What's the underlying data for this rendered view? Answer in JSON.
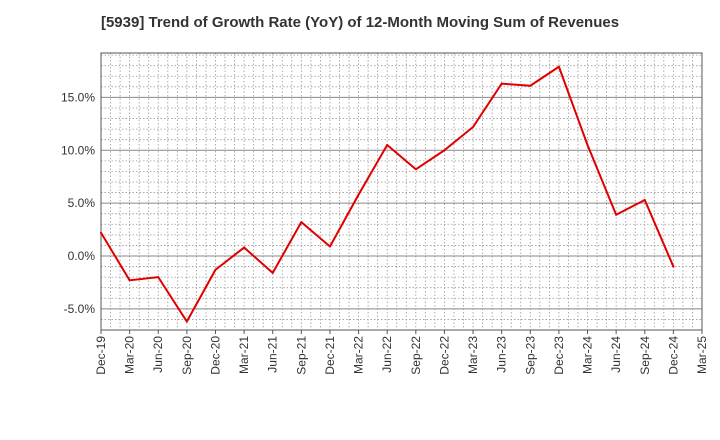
{
  "chart_data": {
    "type": "line",
    "title": "[5939]  Trend of Growth Rate (YoY) of 12-Month Moving Sum of Revenues",
    "xlabel": "",
    "ylabel": "",
    "x_tick_labels": [
      "Dec-19",
      "Mar-20",
      "Jun-20",
      "Sep-20",
      "Dec-20",
      "Mar-21",
      "Jun-21",
      "Sep-21",
      "Dec-21",
      "Mar-22",
      "Jun-22",
      "Sep-22",
      "Dec-22",
      "Mar-23",
      "Jun-23",
      "Sep-23",
      "Dec-23",
      "Mar-24",
      "Jun-24",
      "Sep-24",
      "Dec-24",
      "Mar-25"
    ],
    "y_tick_labels": [
      "-5.0%",
      "0.0%",
      "5.0%",
      "10.0%",
      "15.0%"
    ],
    "y_ticks": [
      -5,
      0,
      5,
      10,
      15
    ],
    "ylim": [
      -7,
      19.2
    ],
    "grid": true,
    "series": [
      {
        "color": "#e00000",
        "x": [
          "Dec-19",
          "Mar-20",
          "Jun-20",
          "Sep-20",
          "Dec-20",
          "Mar-21",
          "Jun-21",
          "Sep-21",
          "Dec-21",
          "Mar-22",
          "Jun-22",
          "Sep-22",
          "Dec-22",
          "Mar-23",
          "Jun-23",
          "Sep-23",
          "Dec-23",
          "Mar-24",
          "Jun-24",
          "Sep-24",
          "Dec-24"
        ],
        "values": [
          2.2,
          -2.3,
          -2.0,
          -6.2,
          -1.3,
          0.8,
          -1.6,
          3.2,
          0.9,
          5.8,
          10.5,
          8.2,
          10.0,
          12.2,
          16.3,
          16.1,
          17.9,
          10.5,
          3.9,
          5.3,
          -1.0
        ]
      }
    ]
  }
}
